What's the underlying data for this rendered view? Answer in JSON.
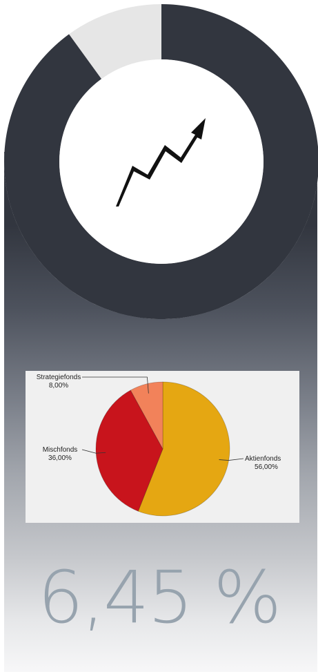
{
  "progress_ring": {
    "fraction": 0.9,
    "fill_color": "#32363f",
    "track_color": "#e6e6e6",
    "center_icon": "rising-zigzag-arrow-icon"
  },
  "chart_data": {
    "type": "pie",
    "categories": [
      "Aktienfonds",
      "Mischfonds",
      "Strategiefonds"
    ],
    "values": [
      56,
      36,
      8
    ],
    "value_labels": [
      "56,00%",
      "36,00%",
      "8,00%"
    ],
    "colors": [
      "#e5a712",
      "#c8141c",
      "#f2825a"
    ],
    "background": "#f0f0f0"
  },
  "summary": {
    "value": "6,45 %"
  },
  "colors": {
    "panel_dark": "#32363f",
    "value_text": "#97a3ae"
  }
}
